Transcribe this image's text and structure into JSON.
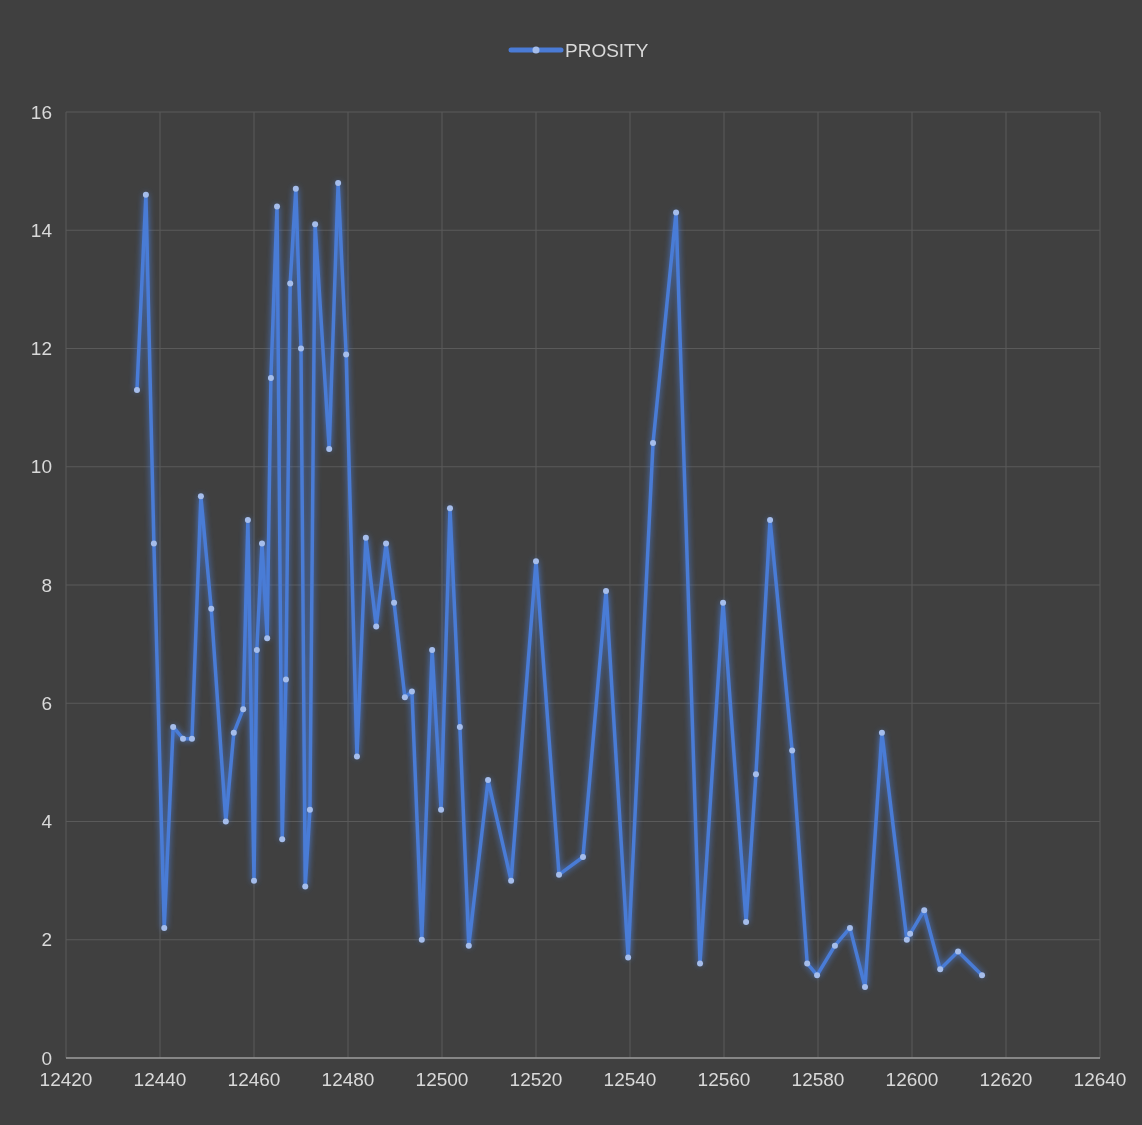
{
  "chart_data": {
    "type": "line",
    "legend": "top",
    "grid": true,
    "marker": "circle",
    "line_style": "solid",
    "xlim": [
      12420,
      12640
    ],
    "xticks": [
      12420,
      12440,
      12460,
      12480,
      12500,
      12520,
      12540,
      12560,
      12580,
      12600,
      12620,
      12640
    ],
    "ylim": [
      0,
      16
    ],
    "yticks": [
      0,
      2,
      4,
      6,
      8,
      10,
      12,
      14,
      16
    ],
    "series": [
      {
        "name": "PROSITY",
        "color": "#4a7bd6",
        "x": [
          12435.1,
          12437,
          12438.7,
          12440.9,
          12442.8,
          12444.9,
          12446.8,
          12448.7,
          12450.9,
          12454,
          12455.7,
          12457.7,
          12458.7,
          12460,
          12460.6,
          12461.7,
          12462.8,
          12463.6,
          12464.9,
          12466,
          12466.8,
          12467.7,
          12468.9,
          12470,
          12470.9,
          12471.9,
          12473,
          12476,
          12477.9,
          12479.6,
          12481.9,
          12483.8,
          12486,
          12488.1,
          12489.8,
          12492.1,
          12493.6,
          12495.7,
          12497.9,
          12499.8,
          12501.7,
          12503.8,
          12505.7,
          12509.8,
          12514.7,
          12520,
          12524.9,
          12530,
          12534.9,
          12539.6,
          12544.9,
          12549.8,
          12554.9,
          12559.8,
          12564.7,
          12566.8,
          12569.8,
          12574.5,
          12577.7,
          12579.8,
          12583.6,
          12586.8,
          12590,
          12593.6,
          12598.9,
          12599.6,
          12602.6,
          12606,
          12609.8,
          12614.9
        ],
        "values": [
          11.3,
          14.6,
          8.7,
          2.2,
          5.6,
          5.4,
          5.4,
          9.5,
          7.6,
          4.0,
          5.5,
          5.9,
          9.1,
          3.0,
          6.9,
          8.7,
          7.1,
          11.5,
          14.4,
          3.7,
          6.4,
          13.1,
          14.7,
          12.0,
          2.9,
          4.2,
          14.1,
          10.3,
          14.8,
          11.9,
          5.1,
          8.8,
          7.3,
          8.7,
          7.7,
          6.1,
          6.2,
          2.0,
          6.9,
          4.2,
          9.3,
          5.6,
          1.9,
          4.7,
          3.0,
          8.4,
          3.1,
          3.4,
          7.9,
          1.7,
          10.4,
          14.3,
          1.6,
          7.7,
          2.3,
          4.8,
          9.1,
          5.2,
          1.6,
          1.4,
          1.9,
          2.2,
          1.2,
          5.5,
          2.0,
          2.1,
          2.5,
          1.5,
          1.8,
          1.4
        ]
      }
    ]
  }
}
